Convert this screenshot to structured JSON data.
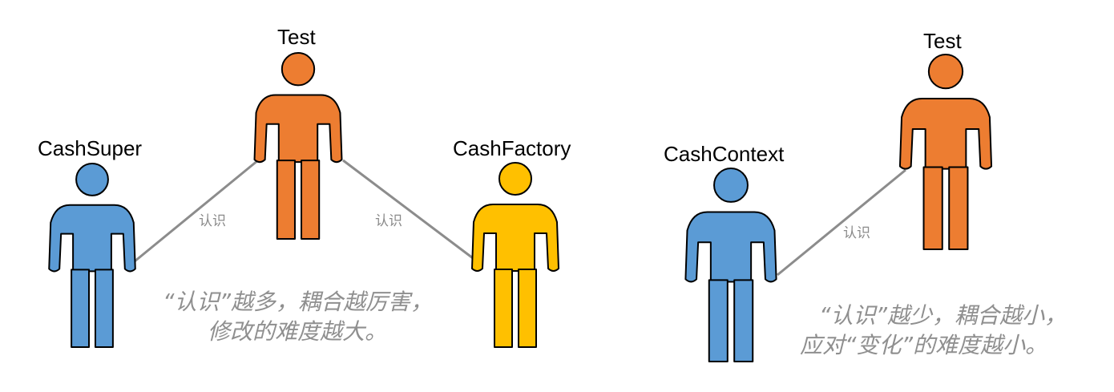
{
  "colors": {
    "blue": "#5b9bd5",
    "orange": "#ed7d31",
    "yellow": "#ffc000",
    "connector": "#8c8c8c",
    "note_text": "#8f8f8f"
  },
  "left_panel": {
    "actors": {
      "cash_super": {
        "label": "CashSuper",
        "color": "blue",
        "icon": "person-icon"
      },
      "test": {
        "label": "Test",
        "color": "orange",
        "icon": "person-icon"
      },
      "cash_factory": {
        "label": "CashFactory",
        "color": "yellow",
        "icon": "person-icon"
      }
    },
    "links": {
      "super_test": {
        "label": "认识"
      },
      "test_factory": {
        "label": "认识"
      }
    },
    "note": {
      "line1": "“认识”越多，耦合越厉害，",
      "line2": "修改的难度越大。"
    }
  },
  "right_panel": {
    "actors": {
      "cash_context": {
        "label": "CashContext",
        "color": "blue",
        "icon": "person-icon"
      },
      "test": {
        "label": "Test",
        "color": "orange",
        "icon": "person-icon"
      }
    },
    "links": {
      "context_test": {
        "label": "认识"
      }
    },
    "note": {
      "line1": "“认识”越少，耦合越小，",
      "line2": "应对“变化”的难度越小。"
    }
  }
}
